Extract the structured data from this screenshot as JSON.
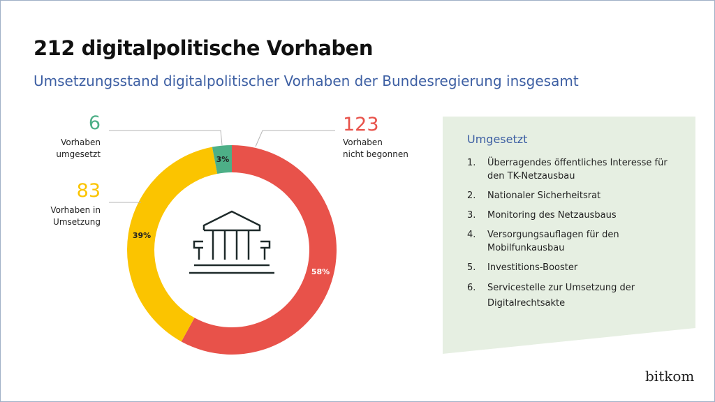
{
  "title": "212 digitalpolitische Vorhaben",
  "subtitle": "Umsetzungsstand digitalpolitischer Vorhaben der Bundesregierung insgesamt",
  "chart_data": {
    "type": "pie",
    "variant": "donut",
    "start": "top, clockwise",
    "slices": [
      {
        "count": "123",
        "label": "Vorhaben nicht begonnen",
        "percent": 58,
        "percent_label": "58%",
        "color": "#e8524a"
      },
      {
        "count": "83",
        "label": "Vorhaben in Umsetzung",
        "percent": 39,
        "percent_label": "39%",
        "color": "#fbc400"
      },
      {
        "count": "6",
        "label": "Vorhaben umgesetzt",
        "percent": 3,
        "percent_label": "3%",
        "color": "#4daf87"
      }
    ],
    "center_icon": "government-building-icon"
  },
  "labels": {
    "red_line1": "Vorhaben",
    "red_line2": "nicht begonnen",
    "yellow_line1": "Vorhaben in",
    "yellow_line2": "Umsetzung",
    "green_line1": "Vorhaben",
    "green_line2": "umgesetzt"
  },
  "panel": {
    "heading": "Umgesetzt",
    "background": "#e6efe2",
    "items": [
      {
        "n": "1.",
        "text": "Überragendes öffentliches Interesse für den TK-Netzausbau"
      },
      {
        "n": "2.",
        "text": "Nationaler Sicherheitsrat"
      },
      {
        "n": "3.",
        "text": "Monitoring des Netzausbaus"
      },
      {
        "n": "4.",
        "text": "Versorgungsauflagen für den Mobilfunkausbau"
      },
      {
        "n": "5.",
        "text": "Investitions-Booster"
      },
      {
        "n": "6.",
        "text": "Servicestelle zur Umsetzung der Digitalrechtsakte"
      }
    ]
  },
  "logo": "bitkom"
}
